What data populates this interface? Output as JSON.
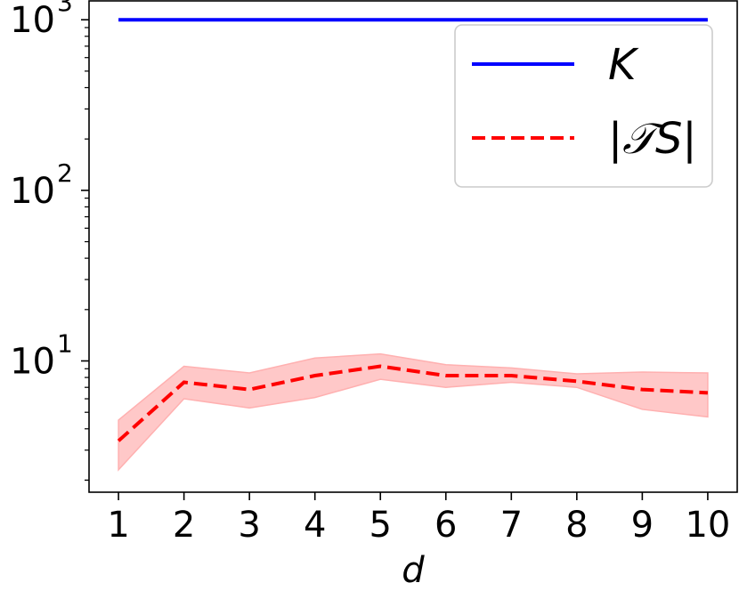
{
  "chart_data": {
    "type": "line",
    "xlabel": "d",
    "ylabel": "",
    "x": [
      1,
      2,
      3,
      4,
      5,
      6,
      7,
      8,
      9,
      10
    ],
    "xlim": [
      0.55,
      10.45
    ],
    "ylim": [
      1.7,
      1290
    ],
    "yscale": "log",
    "y_tick_values": [
      10,
      100,
      1000
    ],
    "y_tick_bases": [
      "10",
      "10",
      "10"
    ],
    "y_tick_exponents": [
      "1",
      "2",
      "3"
    ],
    "grid": false,
    "legend_position": "upper right",
    "series": [
      {
        "name": "K",
        "style": "solid",
        "color": "#0000ff",
        "values": [
          1000,
          1000,
          1000,
          1000,
          1000,
          1000,
          1000,
          1000,
          1000,
          1000
        ]
      },
      {
        "name": "|𝒯S|",
        "style": "dashed",
        "color": "#ff0000",
        "values": [
          3.4,
          7.5,
          6.8,
          8.2,
          9.3,
          8.2,
          8.2,
          7.6,
          6.8,
          6.5
        ],
        "band_lower": [
          2.3,
          6.0,
          5.3,
          6.1,
          7.8,
          7.0,
          7.5,
          7.0,
          5.2,
          4.7
        ],
        "band_upper": [
          4.5,
          9.3,
          8.5,
          10.4,
          11.0,
          9.5,
          9.1,
          8.4,
          8.6,
          8.5
        ],
        "band_color": "#ffc8c8"
      }
    ]
  }
}
